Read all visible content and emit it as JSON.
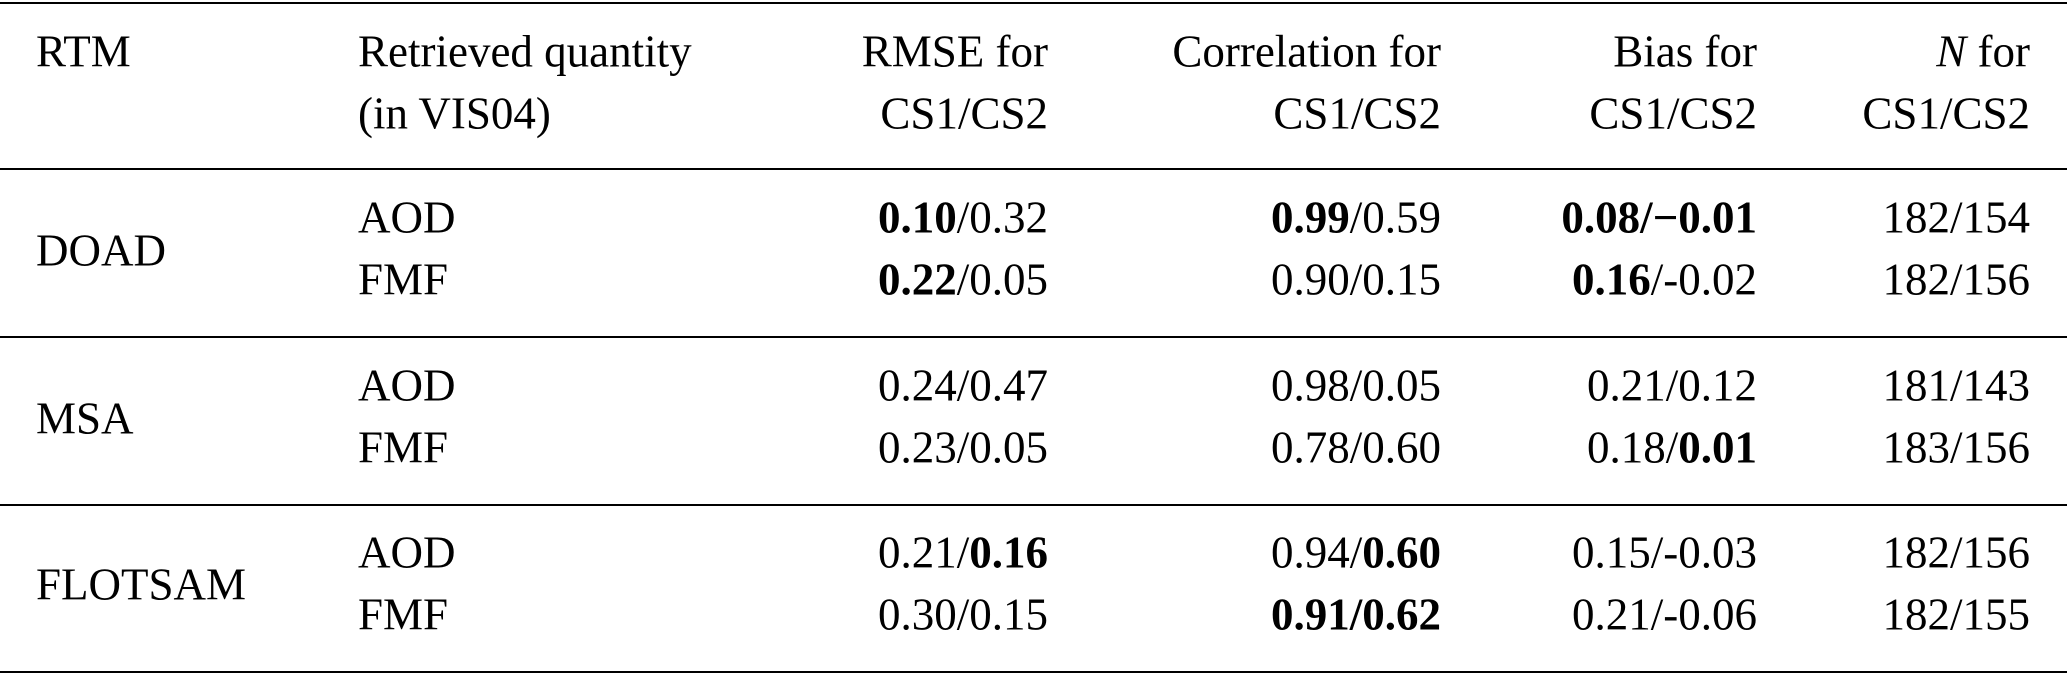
{
  "header": {
    "rtm": "RTM",
    "quantity": [
      "Retrieved quantity",
      "(in VIS04)"
    ],
    "rmse": [
      "RMSE for",
      "CS1/CS2"
    ],
    "correlation": [
      "Correlation for",
      "CS1/CS2"
    ],
    "bias": [
      "Bias for",
      "CS1/CS2"
    ],
    "n": {
      "symbol": "N",
      "rest": " for",
      "line2": "CS1/CS2"
    }
  },
  "separator": "/",
  "groups": [
    {
      "rtm": "DOAD",
      "rows": [
        {
          "quantity": "AOD",
          "rmse": {
            "cs1": "0.10",
            "cs2": "0.32",
            "bold": [
              true,
              false
            ]
          },
          "correlation": {
            "cs1": "0.99",
            "cs2": "0.59",
            "bold": [
              true,
              false
            ]
          },
          "bias": {
            "cs1": "0.08",
            "cs2": "−0.01",
            "bold": [
              true,
              true
            ]
          },
          "n": {
            "cs1": "182",
            "cs2": "154",
            "bold": [
              false,
              false
            ]
          }
        },
        {
          "quantity": "FMF",
          "rmse": {
            "cs1": "0.22",
            "cs2": "0.05",
            "bold": [
              true,
              false
            ]
          },
          "correlation": {
            "cs1": "0.90",
            "cs2": "0.15",
            "bold": [
              false,
              false
            ]
          },
          "bias": {
            "cs1": "0.16",
            "cs2": "-0.02",
            "bold": [
              true,
              false
            ]
          },
          "n": {
            "cs1": "182",
            "cs2": "156",
            "bold": [
              false,
              false
            ]
          }
        }
      ]
    },
    {
      "rtm": "MSA",
      "rows": [
        {
          "quantity": "AOD",
          "rmse": {
            "cs1": "0.24",
            "cs2": "0.47",
            "bold": [
              false,
              false
            ]
          },
          "correlation": {
            "cs1": "0.98",
            "cs2": "0.05",
            "bold": [
              false,
              false
            ]
          },
          "bias": {
            "cs1": "0.21",
            "cs2": "0.12",
            "bold": [
              false,
              false
            ]
          },
          "n": {
            "cs1": "181",
            "cs2": "143",
            "bold": [
              false,
              false
            ]
          }
        },
        {
          "quantity": "FMF",
          "rmse": {
            "cs1": "0.23",
            "cs2": "0.05",
            "bold": [
              false,
              false
            ]
          },
          "correlation": {
            "cs1": "0.78",
            "cs2": "0.60",
            "bold": [
              false,
              false
            ]
          },
          "bias": {
            "cs1": "0.18",
            "cs2": "0.01",
            "bold": [
              false,
              true
            ]
          },
          "n": {
            "cs1": "183",
            "cs2": "156",
            "bold": [
              false,
              false
            ]
          }
        }
      ]
    },
    {
      "rtm": "FLOTSAM",
      "rows": [
        {
          "quantity": "AOD",
          "rmse": {
            "cs1": "0.21",
            "cs2": "0.16",
            "bold": [
              false,
              true
            ]
          },
          "correlation": {
            "cs1": "0.94",
            "cs2": "0.60",
            "bold": [
              false,
              true
            ]
          },
          "bias": {
            "cs1": "0.15",
            "cs2": "-0.03",
            "bold": [
              false,
              false
            ]
          },
          "n": {
            "cs1": "182",
            "cs2": "156",
            "bold": [
              false,
              false
            ]
          }
        },
        {
          "quantity": "FMF",
          "rmse": {
            "cs1": "0.30",
            "cs2": "0.15",
            "bold": [
              false,
              false
            ]
          },
          "correlation": {
            "cs1": "0.91",
            "cs2": "0.62",
            "bold": [
              true,
              true
            ]
          },
          "bias": {
            "cs1": "0.21",
            "cs2": "-0.06",
            "bold": [
              false,
              false
            ]
          },
          "n": {
            "cs1": "182",
            "cs2": "155",
            "bold": [
              false,
              false
            ]
          }
        }
      ]
    }
  ]
}
